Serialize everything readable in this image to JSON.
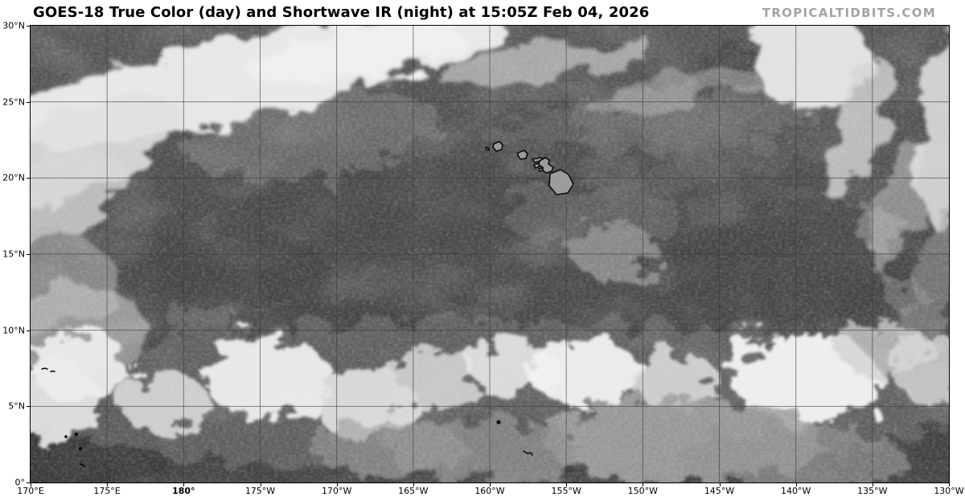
{
  "title": "GOES-18 True Color (day) and Shortwave IR (night) at 15:05Z Feb 04, 2026",
  "watermark": "TROPICALTIDBITS.COM",
  "axes": {
    "lat": [
      "30°N",
      "25°N",
      "20°N",
      "15°N",
      "10°N",
      "5°N",
      "0°"
    ],
    "lon": [
      "170°E",
      "175°E",
      "180°",
      "175°W",
      "170°W",
      "165°W",
      "160°W",
      "155°W",
      "150°W",
      "145°W",
      "140°W",
      "135°W",
      "130°W"
    ],
    "lon_bold_label": "180°"
  },
  "map": {
    "kind": "grayscale-satellite-image",
    "colors": {
      "ocean_dark": "#4a4a4a",
      "cloud_bright": "#f2f2f2",
      "cloud_midgray": "#9a9a9a",
      "land_gray": "#9c9c9c",
      "coastline": "#000000",
      "gridline": "#393939",
      "frame": "#000000",
      "watermark_gray": "#a3a3a3"
    },
    "features": [
      "nw-pacific-frontal-cloud-band",
      "hawaiian-islands-coastlines",
      "trade-wind-cumulus-speckle",
      "itcz-convection-band",
      "stratiform-cloud-sheet-south",
      "small-equatorial-island-outlines"
    ]
  }
}
